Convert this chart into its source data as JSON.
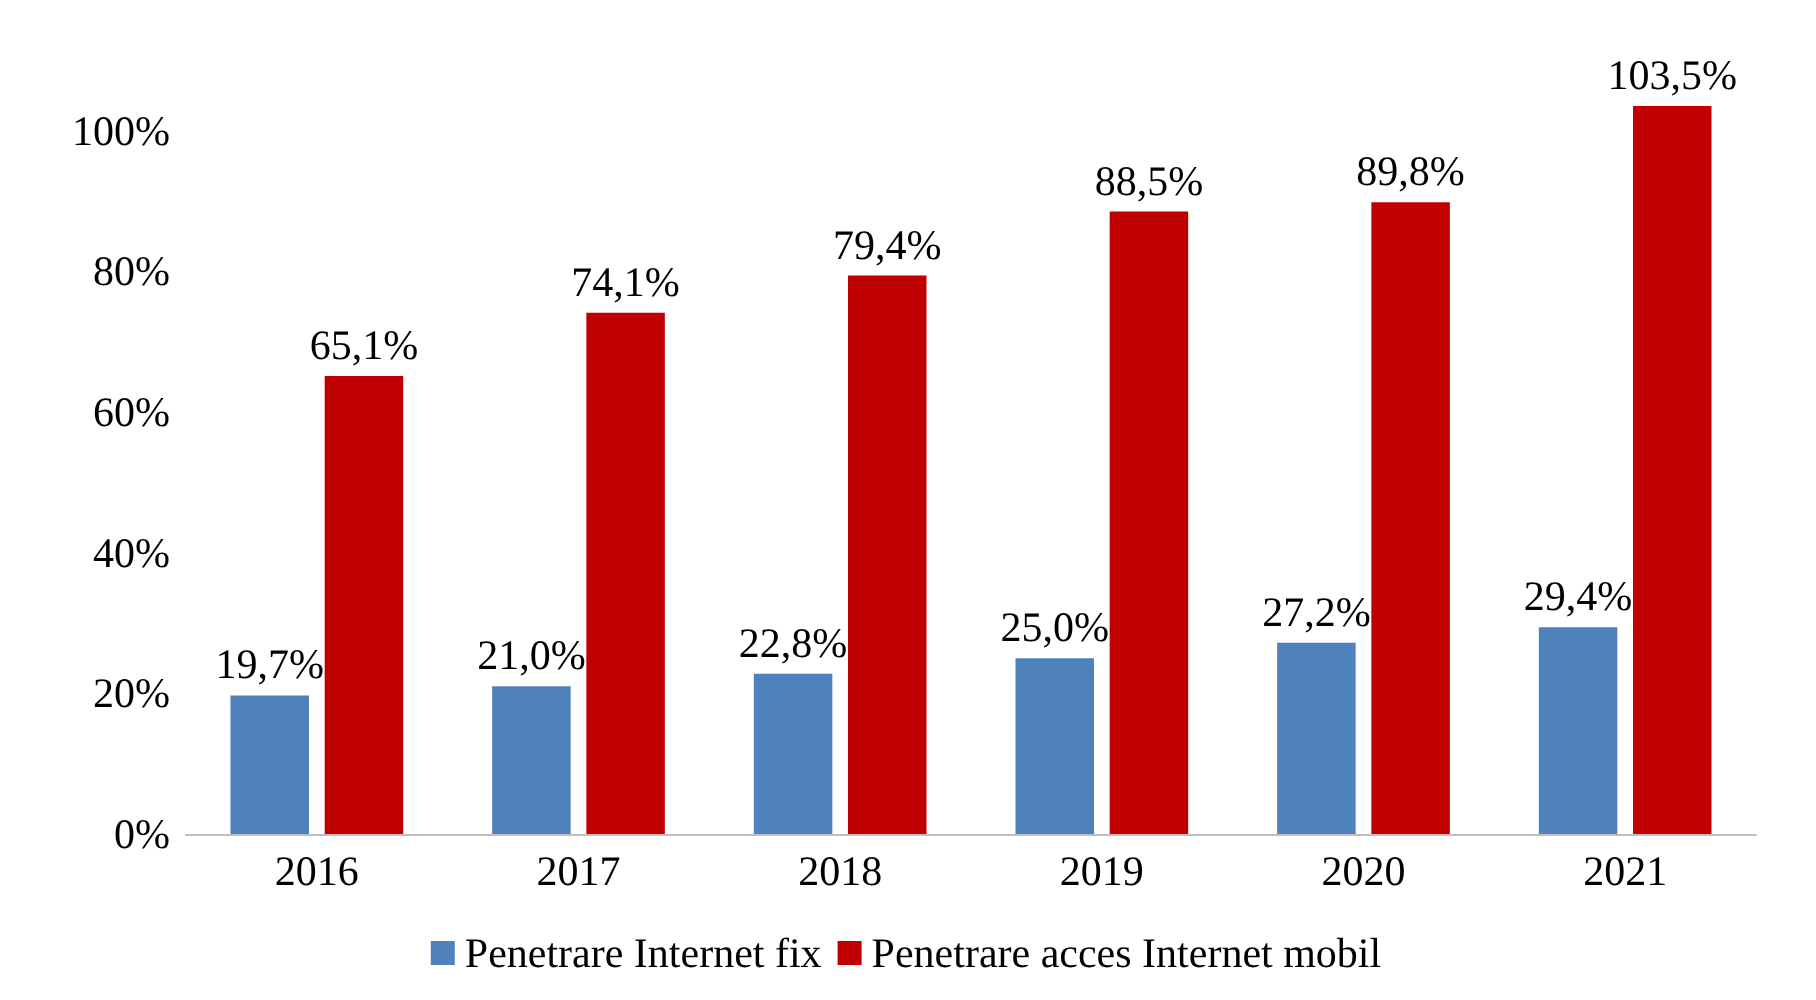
{
  "chart_data": {
    "type": "bar",
    "categories": [
      "2016",
      "2017",
      "2018",
      "2019",
      "2020",
      "2021"
    ],
    "series": [
      {
        "name": "Penetrare Internet fix",
        "color": "#4f81bd",
        "values": [
          19.7,
          21.0,
          22.8,
          25.0,
          27.2,
          29.4
        ],
        "value_labels": [
          "19,7%",
          "21,0%",
          "22,8%",
          "25,0%",
          "27,2%",
          "29,4%"
        ]
      },
      {
        "name": "Penetrare acces Internet mobil",
        "color": "#c00000",
        "values": [
          65.1,
          74.1,
          79.4,
          88.5,
          89.8,
          103.5
        ],
        "value_labels": [
          "65,1%",
          "74,1%",
          "79,4%",
          "88,5%",
          "89,8%",
          "103,5%"
        ]
      }
    ],
    "yticks": [
      {
        "value": 0,
        "label": "0%"
      },
      {
        "value": 20,
        "label": "20%"
      },
      {
        "value": 40,
        "label": "40%"
      },
      {
        "value": 60,
        "label": "60%"
      },
      {
        "value": 80,
        "label": "80%"
      },
      {
        "value": 100,
        "label": "100%"
      }
    ],
    "ylim": [
      0,
      103.5
    ],
    "grid": false,
    "legend": "bottom"
  }
}
